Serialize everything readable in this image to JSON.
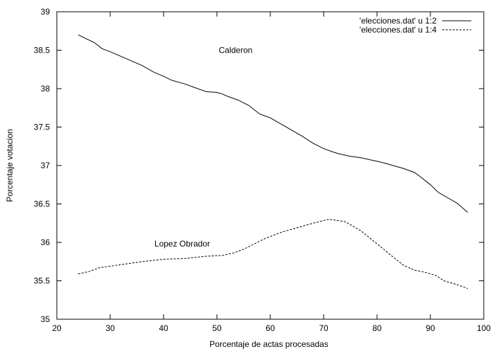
{
  "chart_data": {
    "type": "line",
    "title": "",
    "xlabel": "Porcentaje de actas procesadas",
    "ylabel": "Porcentaje votacion",
    "xlim": [
      20,
      100
    ],
    "ylim": [
      35,
      39
    ],
    "xticks": [
      20,
      30,
      40,
      50,
      60,
      70,
      80,
      90,
      100
    ],
    "yticks": [
      35,
      35.5,
      36,
      36.5,
      37,
      37.5,
      38,
      38.5,
      39
    ],
    "grid": false,
    "legend_position": "top-right",
    "series": [
      {
        "name": "'elecciones.dat' u 1:2",
        "style": "solid",
        "color": "#000000",
        "x": [
          24,
          25.5,
          27,
          28.5,
          30,
          33,
          36,
          38,
          40,
          41.5,
          44,
          46,
          48,
          50,
          51,
          52,
          54,
          56,
          58,
          60,
          62,
          64,
          66,
          68,
          70,
          72,
          73,
          75,
          77,
          79,
          81,
          83,
          85,
          87,
          88,
          90,
          91.5,
          93,
          95,
          97
        ],
        "y": [
          38.7,
          38.65,
          38.6,
          38.52,
          38.48,
          38.39,
          38.3,
          38.22,
          38.16,
          38.11,
          38.06,
          38.01,
          37.96,
          37.95,
          37.93,
          37.9,
          37.85,
          37.78,
          37.67,
          37.62,
          37.54,
          37.46,
          37.38,
          37.29,
          37.22,
          37.17,
          37.15,
          37.12,
          37.1,
          37.07,
          37.04,
          37.0,
          36.96,
          36.91,
          36.86,
          36.75,
          36.65,
          36.59,
          36.51,
          36.39
        ]
      },
      {
        "name": "'elecciones.dat' u 1:4",
        "style": "dashed",
        "color": "#000000",
        "x": [
          24,
          26,
          28,
          30,
          33,
          36,
          40,
          44,
          48,
          51,
          53,
          55,
          57,
          59,
          62,
          65,
          68,
          71,
          74,
          77,
          80,
          83,
          85,
          87,
          89,
          91,
          92.5,
          95,
          97
        ],
        "y": [
          35.59,
          35.62,
          35.67,
          35.69,
          35.72,
          35.75,
          35.78,
          35.79,
          35.82,
          35.83,
          35.86,
          35.91,
          35.98,
          36.05,
          36.13,
          36.19,
          36.25,
          36.3,
          36.27,
          36.15,
          35.98,
          35.81,
          35.7,
          35.64,
          35.61,
          35.57,
          35.5,
          35.45,
          35.4
        ]
      }
    ],
    "annotations": [
      {
        "text": "Calderon",
        "x": 53.5,
        "y": 38.5
      },
      {
        "text": "Lopez Obrador",
        "x": 43.5,
        "y": 35.98
      }
    ]
  }
}
